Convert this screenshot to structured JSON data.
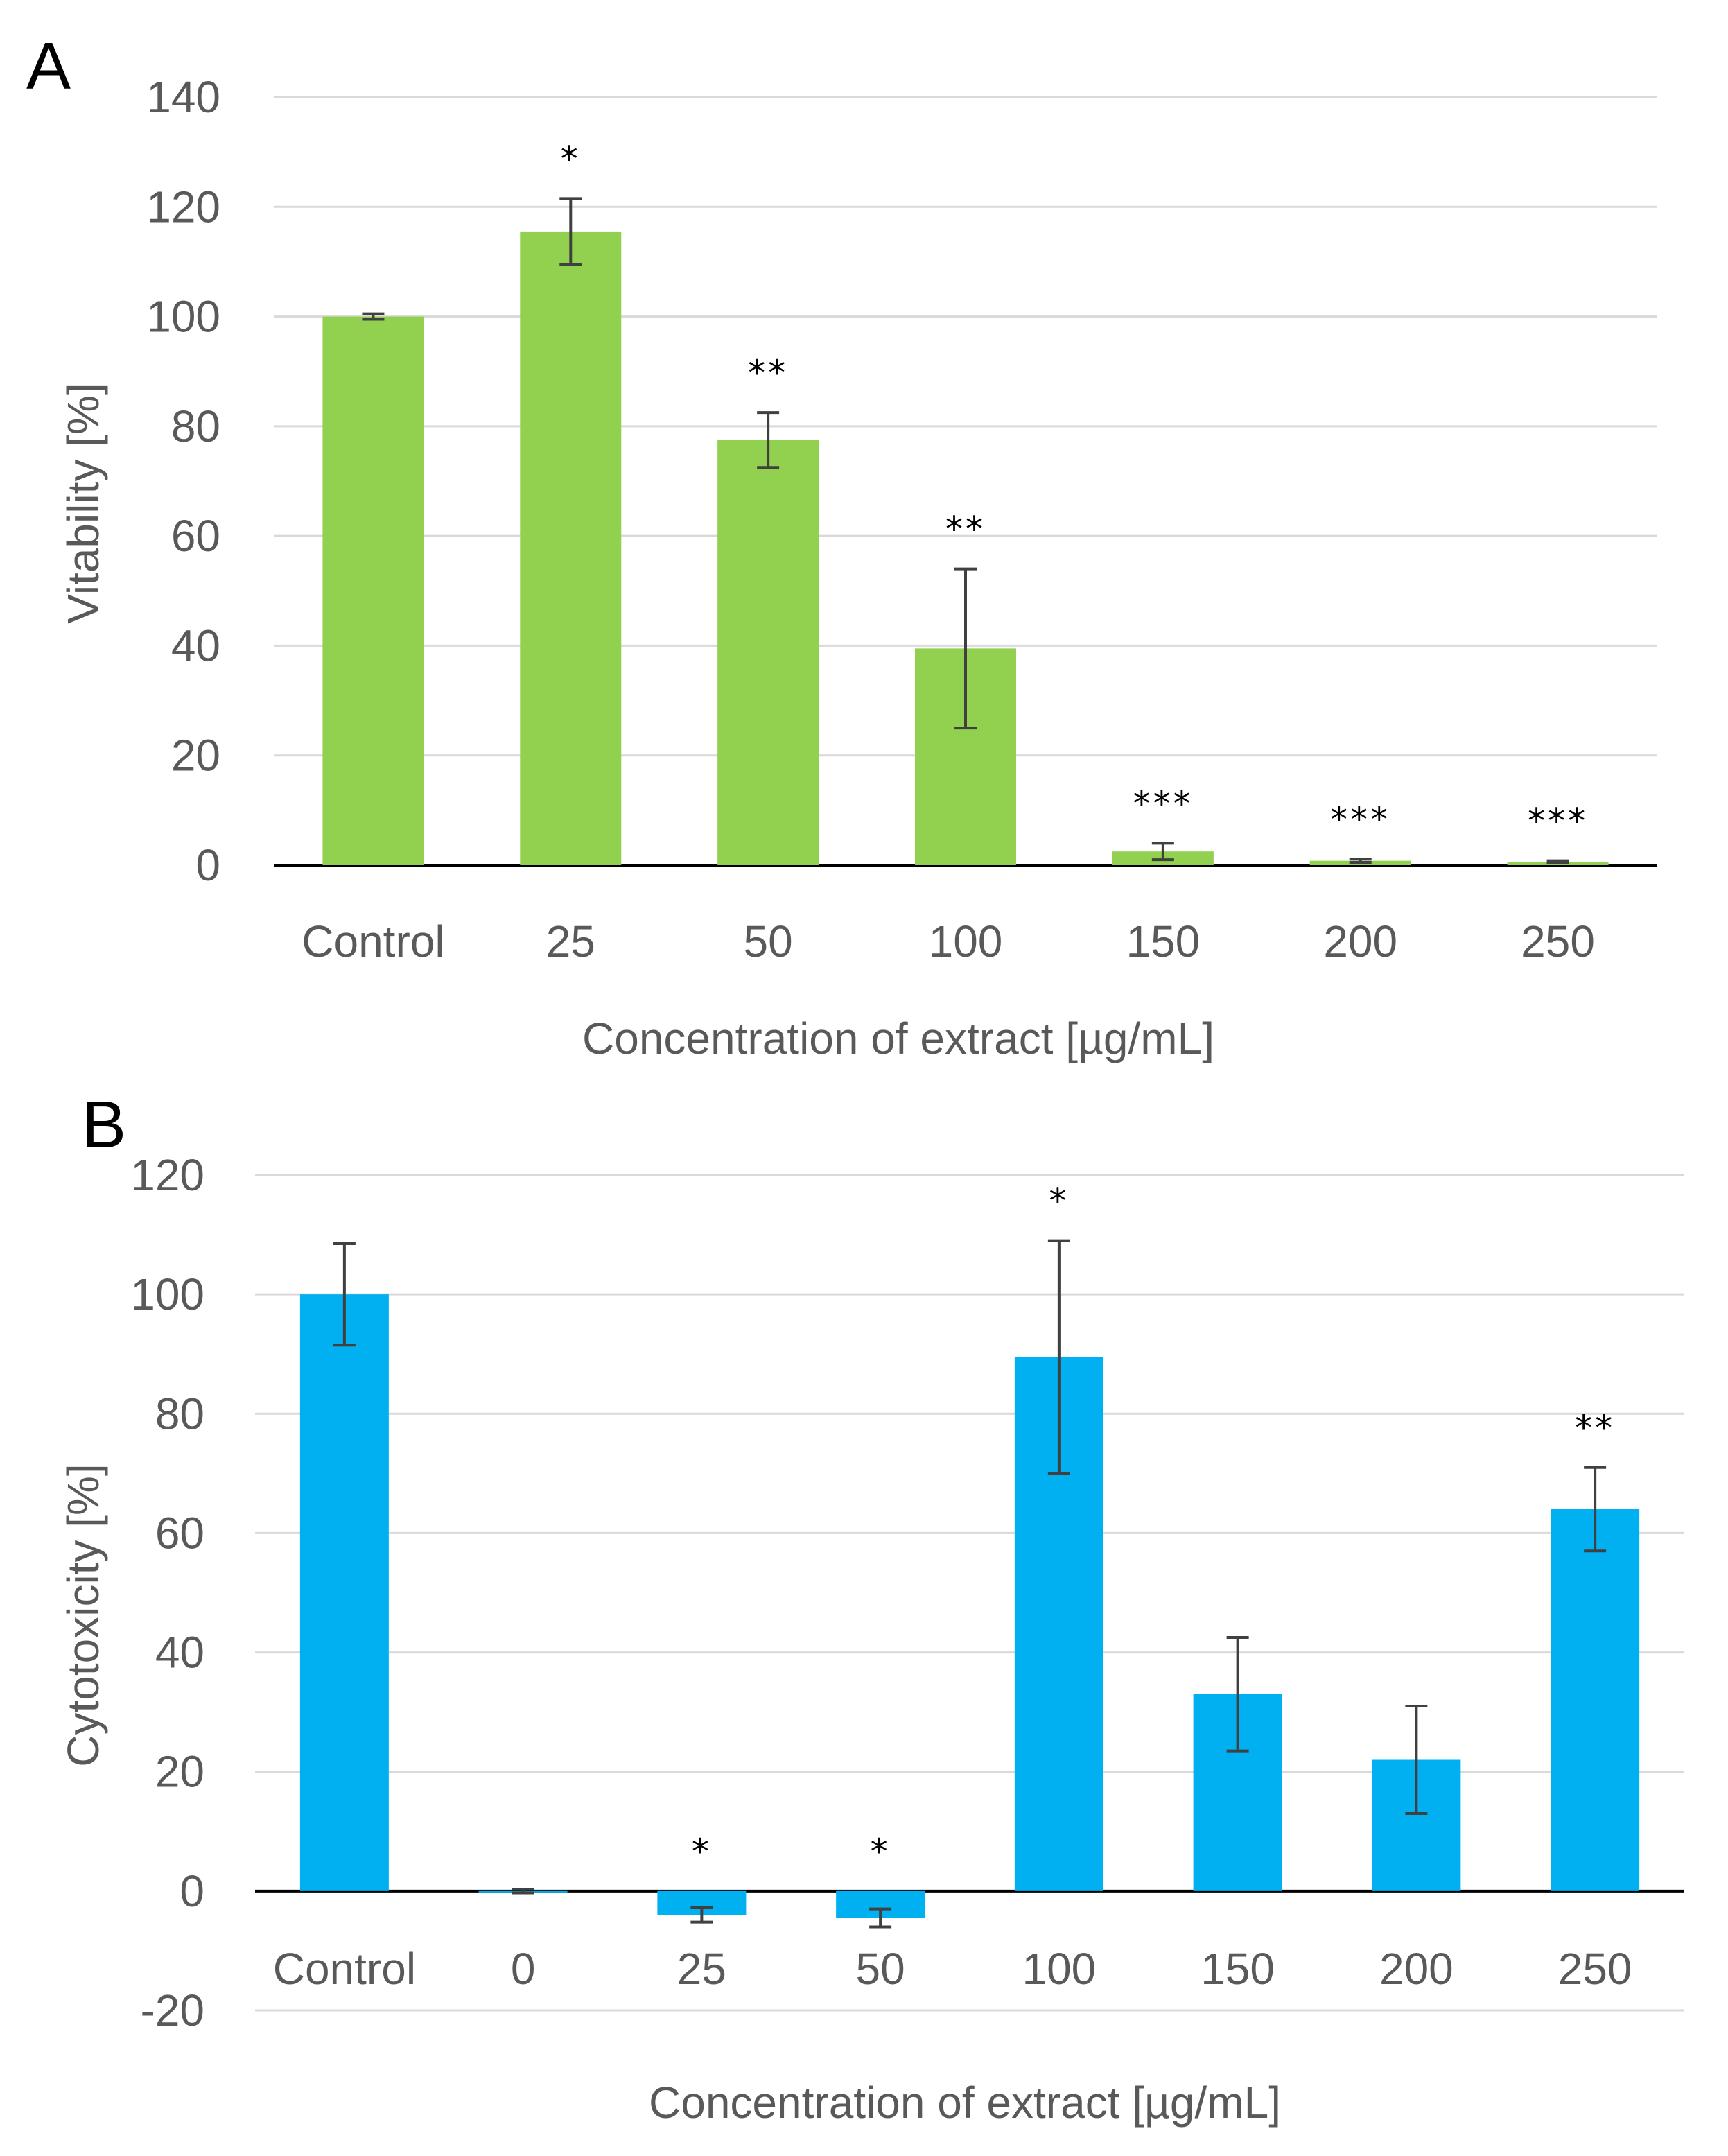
{
  "chart_data": [
    {
      "type": "bar",
      "panel_label": "A",
      "title": "",
      "xlabel": "Concentration of extract  [µg/mL]",
      "ylabel": "Vitability [%]",
      "ylim": [
        0,
        140
      ],
      "yticks": [
        0,
        20,
        40,
        60,
        80,
        100,
        120,
        140
      ],
      "grid": true,
      "categories": [
        "Control",
        "25",
        "50",
        "100",
        "150",
        "200",
        "250"
      ],
      "series": [
        {
          "name": "Vitability",
          "color": "#92d050",
          "values": [
            100,
            115.5,
            77.5,
            39.5,
            2.5,
            0.8,
            0.6
          ],
          "errors": [
            0.5,
            6,
            5,
            14.5,
            1.5,
            0.3,
            0.2
          ],
          "significance": [
            "",
            "*",
            "**",
            "**",
            "***",
            "***",
            "***"
          ]
        }
      ]
    },
    {
      "type": "bar",
      "panel_label": "B",
      "title": "",
      "xlabel": "Concentration of extract [µg/mL]",
      "ylabel": "Cytotoxicity [%]",
      "ylim": [
        -20,
        120
      ],
      "yticks": [
        -20,
        0,
        20,
        40,
        60,
        80,
        100,
        120
      ],
      "grid": true,
      "categories": [
        "Control",
        "0",
        "25",
        "50",
        "100",
        "150",
        "200",
        "250"
      ],
      "series": [
        {
          "name": "Cytotoxicity",
          "color": "#00b0f0",
          "values": [
            100,
            0,
            -4,
            -4.5,
            89.5,
            33,
            22,
            64
          ],
          "errors": [
            8.5,
            0.3,
            1.2,
            1.5,
            19.5,
            9.5,
            9,
            7
          ],
          "significance": [
            "",
            "",
            "*",
            "*",
            "*",
            "",
            "",
            "**"
          ]
        }
      ]
    }
  ]
}
